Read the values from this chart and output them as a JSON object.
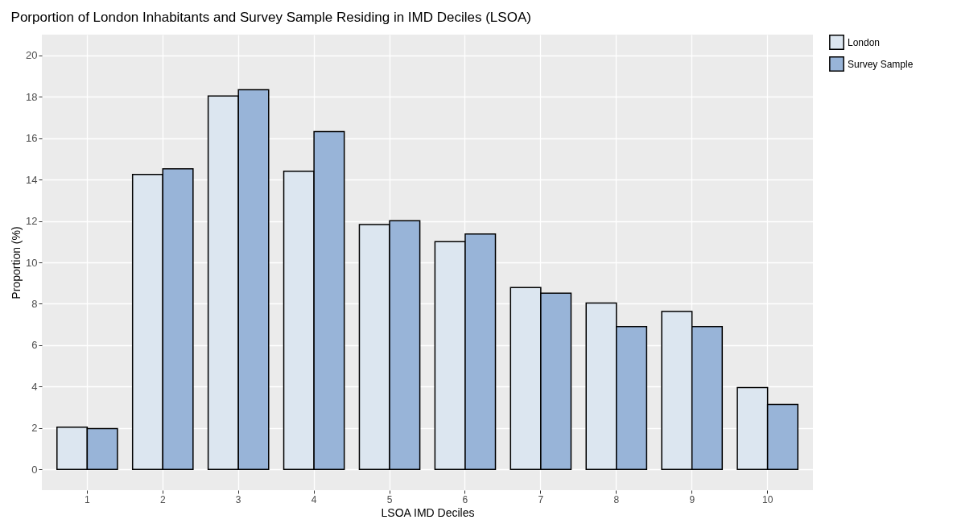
{
  "chart_data": {
    "type": "bar",
    "title": "Porportion of London Inhabitants and Survey Sample Residing in IMD Deciles (LSOA)",
    "xlabel": "LSOA IMD Deciles",
    "ylabel": "Proportion (%)",
    "categories": [
      "1",
      "2",
      "3",
      "4",
      "5",
      "6",
      "7",
      "8",
      "9",
      "10"
    ],
    "series": [
      {
        "name": "London",
        "color": "#dce6f0",
        "values": [
          2.04,
          14.25,
          18.04,
          14.4,
          11.83,
          11.0,
          8.79,
          8.04,
          7.63,
          3.96
        ]
      },
      {
        "name": "Survey Sample",
        "color": "#98b4d8",
        "values": [
          1.97,
          14.52,
          18.34,
          16.32,
          12.01,
          11.37,
          8.51,
          6.9,
          6.9,
          3.14
        ]
      }
    ],
    "ylim": [
      -1,
      21
    ],
    "yticks": [
      0,
      2,
      4,
      6,
      8,
      10,
      12,
      14,
      16,
      18,
      20
    ],
    "grid": true,
    "legend": "right"
  }
}
